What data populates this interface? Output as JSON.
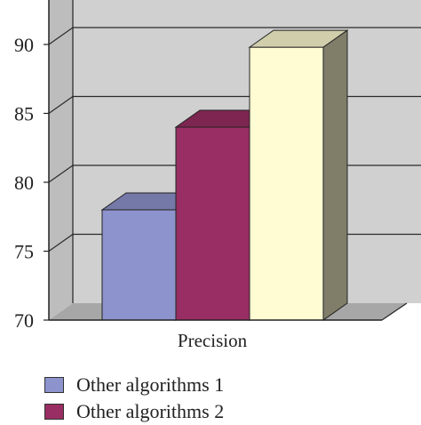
{
  "chart_data": {
    "type": "bar",
    "style": "3d",
    "xlabel": "",
    "ylabel": "",
    "category": "Precision",
    "ylim": [
      70,
      92
    ],
    "yticks": [
      "70",
      "75",
      "80",
      "85",
      "90"
    ],
    "grid": true,
    "legend_position": "bottom",
    "series": [
      {
        "name": "Other algorithms 1",
        "value": 78,
        "color": "#8d93cc"
      },
      {
        "name": "Other algorithms 2",
        "value": 84,
        "color": "#982e63"
      },
      {
        "name": "",
        "value": 89.8,
        "color": "#fffbd2"
      }
    ]
  }
}
